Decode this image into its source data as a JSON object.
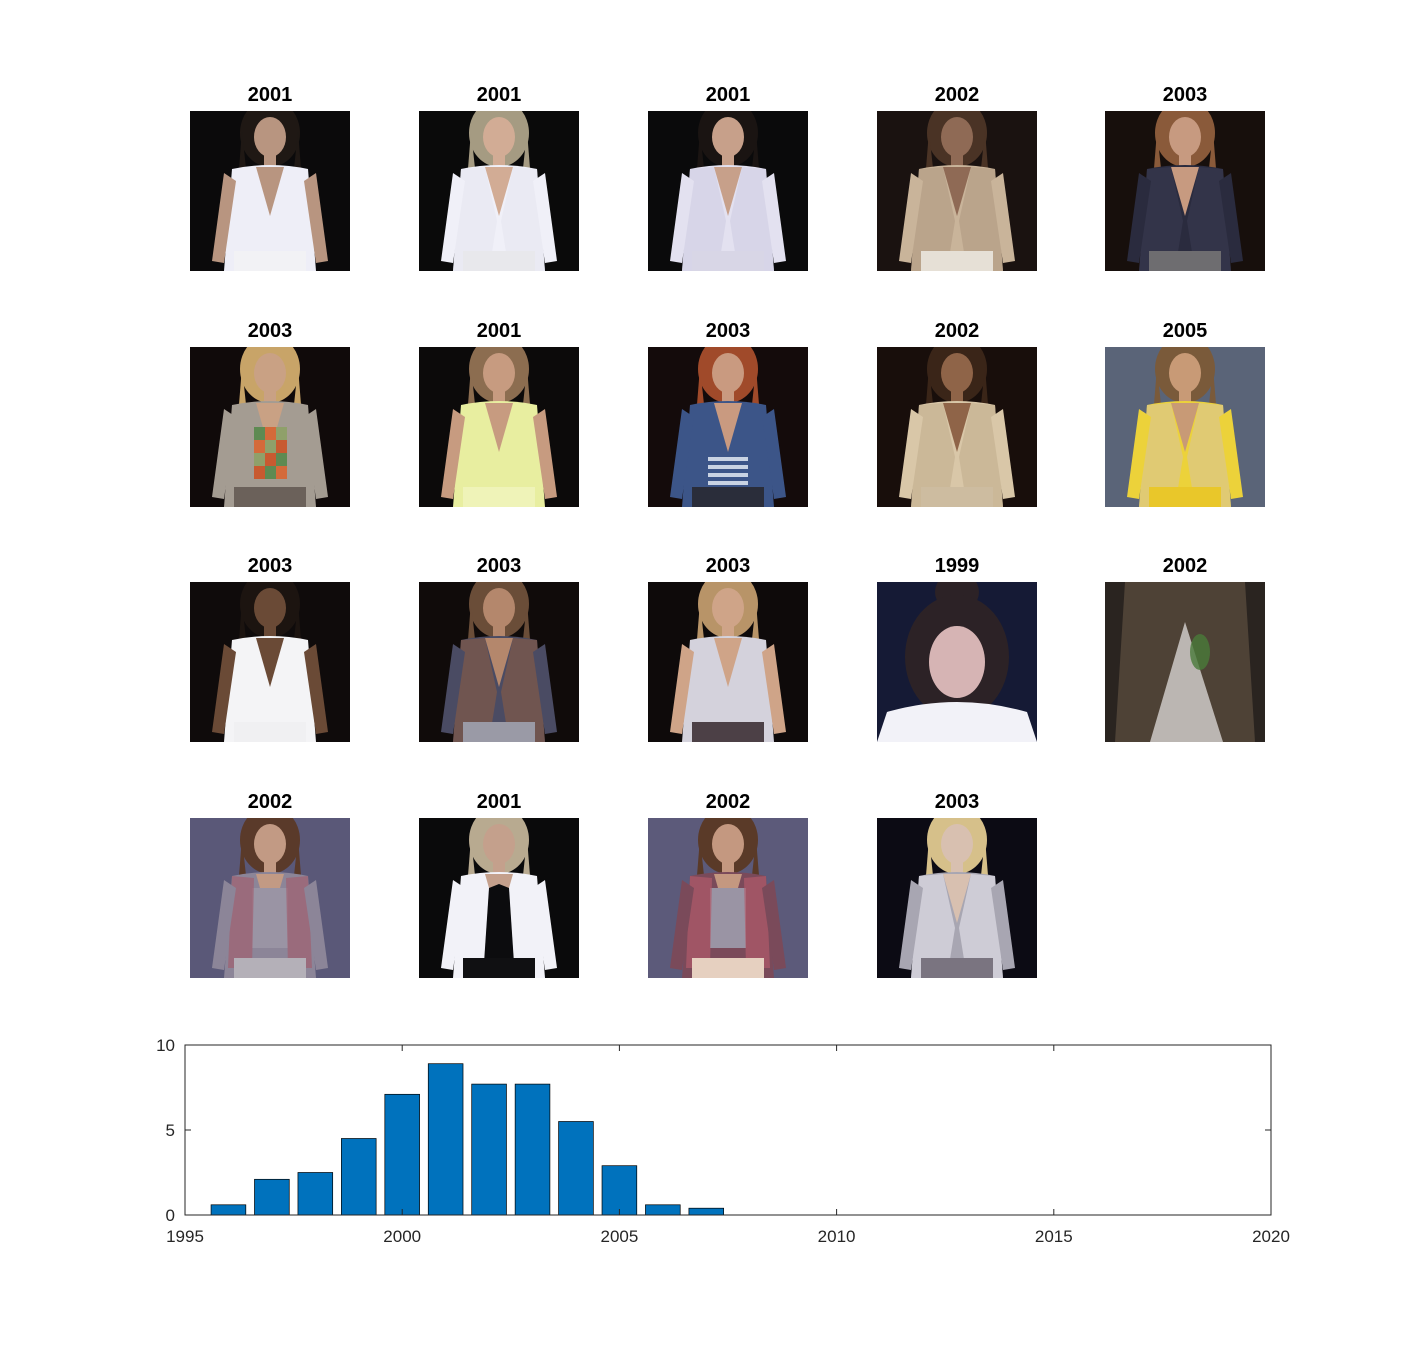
{
  "images": [
    {
      "year": "2001",
      "bg": "#0b0a0b",
      "skin": "#b89580",
      "hair": "#1f1814",
      "top": "#eeeef7",
      "accent": "#d9d9e6",
      "bottom": "#f2f2f5",
      "style": "top"
    },
    {
      "year": "2001",
      "bg": "#0a0a0a",
      "skin": "#d2ac95",
      "hair": "#a59b82",
      "top": "#f0f0f8",
      "accent": "#e6e6f0",
      "bottom": "#e8e8ec",
      "style": "jacket"
    },
    {
      "year": "2001",
      "bg": "#0a0a0b",
      "skin": "#c7a08a",
      "hair": "#1a1412",
      "top": "#e3e1f0",
      "accent": "#cfcde2",
      "bottom": "#d8d6e6",
      "style": "jacket"
    },
    {
      "year": "2002",
      "bg": "#1a1210",
      "skin": "#8f6a55",
      "hair": "#4a3325",
      "top": "#c9b49a",
      "accent": "#b09a82",
      "bottom": "#e6e0d6",
      "style": "jacket"
    },
    {
      "year": "2003",
      "bg": "#170f0c",
      "skin": "#c79a80",
      "hair": "#8a5a3a",
      "top": "#2a2b3e",
      "accent": "#3a3b52",
      "bottom": "#6e6d70",
      "style": "jacket"
    },
    {
      "year": "2003",
      "bg": "#100a0a",
      "skin": "#c9a184",
      "hair": "#c8a468",
      "top": "#a49c92",
      "accent": "#5e8a52",
      "bottom": "#6b615a",
      "style": "plaid"
    },
    {
      "year": "2001",
      "bg": "#0c0a0a",
      "skin": "#c79b80",
      "hair": "#8c6d50",
      "top": "#e8eea0",
      "accent": "#d7df86",
      "bottom": "#eff3b8",
      "style": "top"
    },
    {
      "year": "2003",
      "bg": "#140b0b",
      "skin": "#c99a80",
      "hair": "#a04a2a",
      "top": "#3c5588",
      "accent": "#c9d3e3",
      "bottom": "#2a2d3a",
      "style": "stripes"
    },
    {
      "year": "2002",
      "bg": "#180e0b",
      "skin": "#8f6448",
      "hair": "#3a2518",
      "top": "#d9c7a8",
      "accent": "#c2ad8d",
      "bottom": "#cdbca0",
      "style": "jacket"
    },
    {
      "year": "2005",
      "bg": "#5a6478",
      "skin": "#c89a76",
      "hair": "#7a5a3a",
      "top": "#ecd23a",
      "accent": "#d8c59a",
      "bottom": "#e9c72a",
      "style": "jacket"
    },
    {
      "year": "2003",
      "bg": "#0f0b0b",
      "skin": "#6a4a36",
      "hair": "#1c1410",
      "top": "#f4f4f6",
      "accent": "#e0e0e6",
      "bottom": "#f0f0f2",
      "style": "top"
    },
    {
      "year": "2003",
      "bg": "#100b0a",
      "skin": "#b4876c",
      "hair": "#6a4d38",
      "top": "#4a4b63",
      "accent": "#8a5c44",
      "bottom": "#9a9aa6",
      "style": "jacket"
    },
    {
      "year": "2003",
      "bg": "#0e0a0a",
      "skin": "#cfa488",
      "hair": "#b89468",
      "top": "#d4d2dc",
      "accent": "#bdbbc8",
      "bottom": "#4c4046",
      "style": "top"
    },
    {
      "year": "1999",
      "bg": "#151a35",
      "skin": "#d6b4b4",
      "hair": "#2c2226",
      "top": "#f2f2f8",
      "accent": "#e6e6ef",
      "bottom": "#f6f6fa",
      "style": "face"
    },
    {
      "year": "2002",
      "bg": "#2a2420",
      "skin": "#4e4236",
      "hair": "#3a302a",
      "top": "#cfcac8",
      "accent": "#4a7a3a",
      "bottom": "#b8b2ae",
      "style": "blur"
    },
    {
      "year": "2002",
      "bg": "#5a5878",
      "skin": "#c29a84",
      "hair": "#5a3a2a",
      "top": "#8c8598",
      "accent": "#a06070",
      "bottom": "#b4b0b8",
      "style": "vest"
    },
    {
      "year": "2001",
      "bg": "#0a0a0b",
      "skin": "#c4a08c",
      "hair": "#b8aa90",
      "top": "#f2f2f8",
      "accent": "#0c0c0e",
      "bottom": "#101012",
      "style": "shirt"
    },
    {
      "year": "2002",
      "bg": "#5c5a7a",
      "skin": "#c49880",
      "hair": "#5a3a28",
      "top": "#7a4a5a",
      "accent": "#b05a6a",
      "bottom": "#e6d0c0",
      "style": "vest"
    },
    {
      "year": "2003",
      "bg": "#0c0b14",
      "skin": "#d8c0b0",
      "hair": "#d6c08a",
      "top": "#a8a6b2",
      "accent": "#e8e6ee",
      "bottom": "#7a7480",
      "style": "jacket"
    }
  ],
  "chart_data": {
    "type": "bar",
    "x": [
      1996,
      1997,
      1998,
      1999,
      2000,
      2001,
      2002,
      2003,
      2004,
      2005,
      2006,
      2007
    ],
    "values": [
      0.6,
      2.1,
      2.5,
      4.5,
      7.1,
      8.9,
      7.7,
      7.7,
      5.5,
      2.9,
      0.6,
      0.4
    ],
    "xlim": [
      1995,
      2020
    ],
    "ylim": [
      0,
      10
    ],
    "xticks": [
      "1995",
      "2000",
      "2005",
      "2010",
      "2015",
      "2020"
    ],
    "yticks": [
      "0",
      "5",
      "10"
    ],
    "bar_color": "#0072bd",
    "title": "",
    "xlabel": "",
    "ylabel": ""
  }
}
